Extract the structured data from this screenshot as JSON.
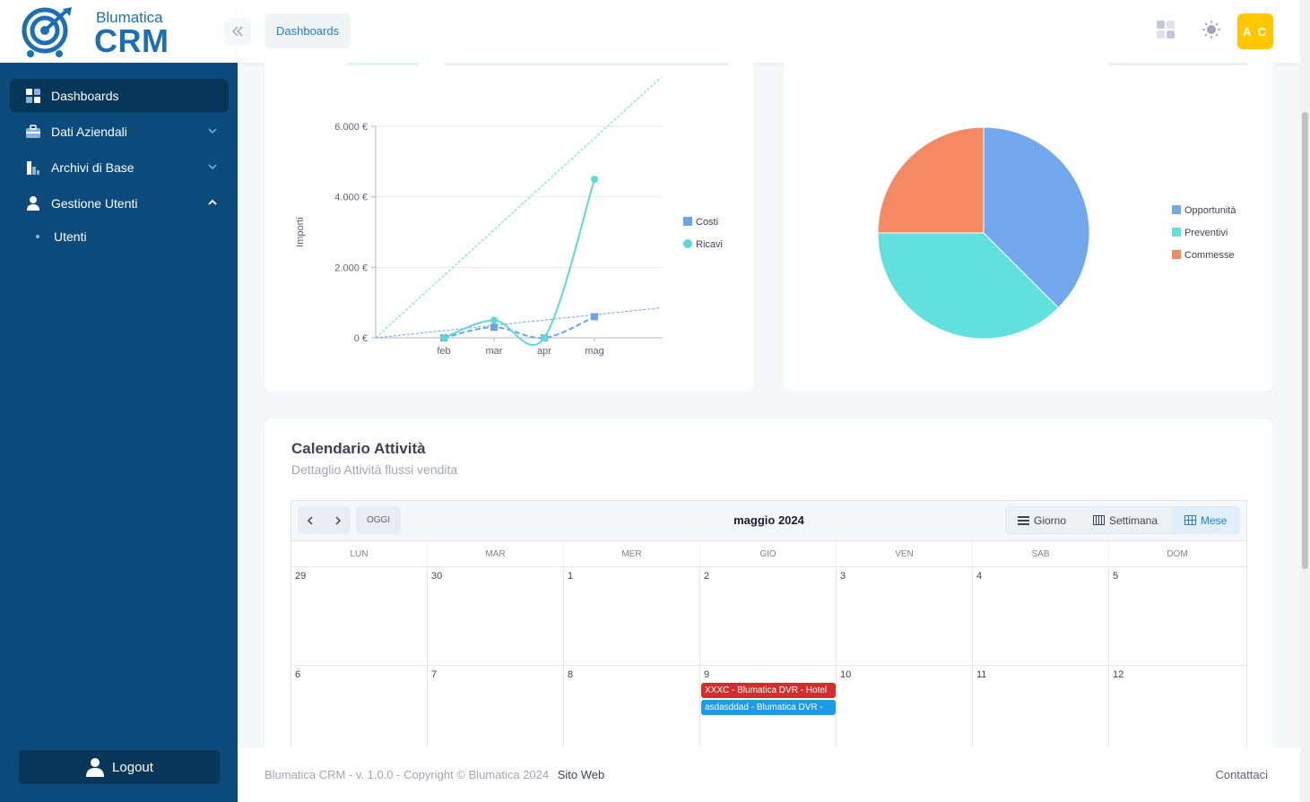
{
  "brand": {
    "small": "Blumatica",
    "big": "CRM"
  },
  "header": {
    "breadcrumb": "Dashboards",
    "avatar_initials": "A C"
  },
  "sidebar": {
    "items": [
      {
        "label": "Dashboards",
        "icon": "dashboard-icon",
        "active": true
      },
      {
        "label": "Dati Aziendali",
        "icon": "briefcase-icon"
      },
      {
        "label": "Archivi di Base",
        "icon": "archive-icon"
      },
      {
        "label": "Gestione Utenti",
        "icon": "user-icon",
        "expanded": true
      }
    ],
    "sub_items": [
      {
        "label": "Utenti"
      }
    ],
    "logout_label": "Logout"
  },
  "chart_data": [
    {
      "type": "line",
      "ylabel": "Importi",
      "categories": [
        "feb",
        "mar",
        "apr",
        "mag"
      ],
      "ylim": [
        0,
        6000
      ],
      "yticks": [
        "0 €",
        "2.000 €",
        "4.000 €",
        "6.000 €"
      ],
      "series": [
        {
          "name": "Costi",
          "values": [
            0,
            300,
            0,
            600
          ],
          "color": "#6da3ec"
        },
        {
          "name": "Ricavi",
          "values": [
            0,
            500,
            0,
            4500
          ],
          "color": "#5fd9d6"
        }
      ],
      "legend": "right"
    },
    {
      "type": "pie",
      "labels": [
        "Opportunità",
        "Preventivi",
        "Commesse"
      ],
      "values": [
        37.5,
        37.5,
        25
      ],
      "colors": [
        "#73a8ed",
        "#62e0dd",
        "#f58964"
      ],
      "legend": "right"
    }
  ],
  "calendar": {
    "title": "Calendario Attività",
    "subtitle": "Dettaglio Attività flussi vendita",
    "today_label": "OGGI",
    "month_label": "maggio 2024",
    "views": [
      "Giorno",
      "Settimana",
      "Mese"
    ],
    "weekdays": [
      "LUN",
      "MAR",
      "MER",
      "GIO",
      "VEN",
      "SAB",
      "DOM"
    ],
    "week1": [
      "29",
      "30",
      "1",
      "2",
      "3",
      "4",
      "5"
    ],
    "week2": [
      "6",
      "7",
      "8",
      "9",
      "10",
      "11",
      "12"
    ],
    "events": [
      {
        "label": "XXXC - Blumatica DVR - Hotel",
        "color": "#d12e2e"
      },
      {
        "label": "asdasddad - Blumatica DVR -",
        "color": "#1d9be5"
      }
    ]
  },
  "footer": {
    "text": "Blumatica CRM - v. 1.0.0 - Copyright © Blumatica 2024",
    "link": "Sito Web",
    "right_link": "Contattaci"
  }
}
